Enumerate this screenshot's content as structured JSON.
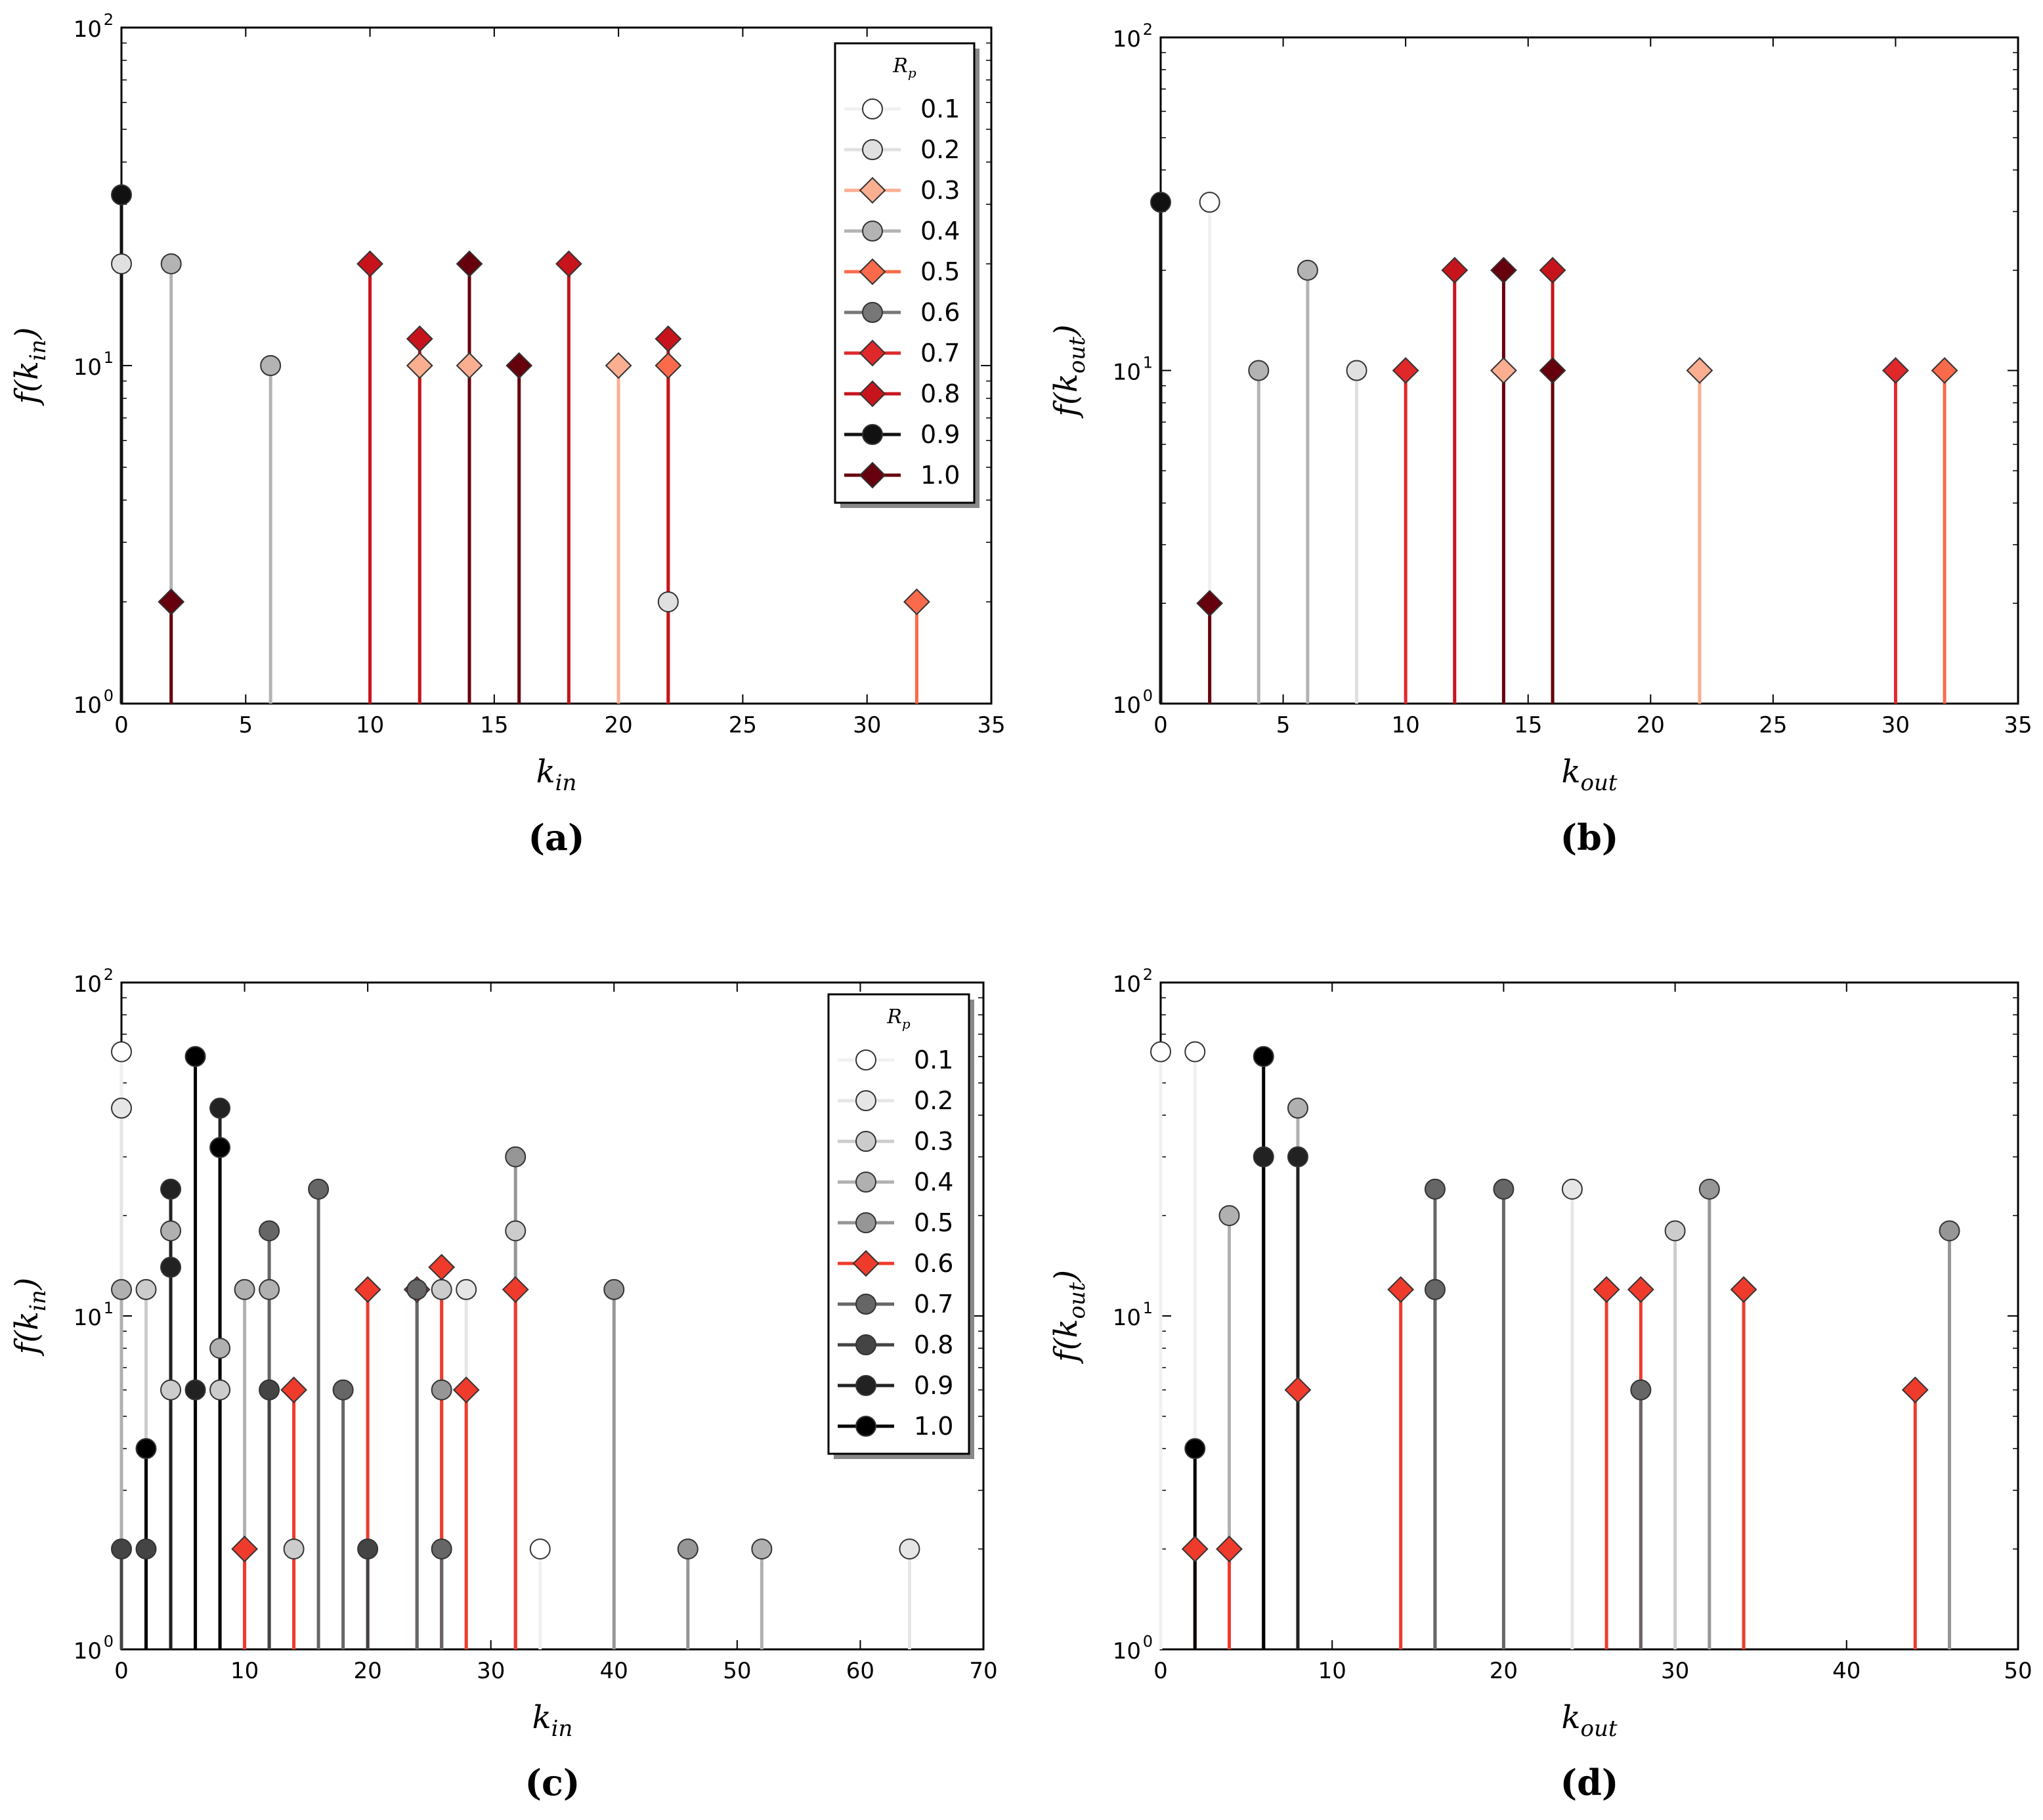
{
  "chart_data": [
    {
      "panel_label": "(a)",
      "type": "stem",
      "yscale": "log",
      "xlim": [
        0,
        35
      ],
      "ylim": [
        1,
        100
      ],
      "xticks": [
        "0",
        "5",
        "10",
        "15",
        "20",
        "25",
        "30",
        "35"
      ],
      "yticks": [
        "10",
        "10",
        "10"
      ],
      "ytick_exponents": [
        "0",
        "1",
        "2"
      ],
      "xlabel": "k",
      "xlabel_sub": "in",
      "ylabel": "f(k",
      "ylabel_sub": "in",
      "ylabel_close": ")",
      "legend": {
        "title": "R",
        "title_sub": "p",
        "placement": "upper-right"
      },
      "series": [
        {
          "name": "0.1",
          "marker": "circle",
          "color": "#ffffff",
          "line": "#f0f0f0",
          "points": []
        },
        {
          "name": "0.2",
          "marker": "circle",
          "color": "#e0e0e0",
          "line": "#e0e0e0",
          "points": [
            [
              0,
              20
            ],
            [
              22,
              2
            ]
          ]
        },
        {
          "name": "0.3",
          "marker": "diamond",
          "color": "#fcae91",
          "line": "#fcae91",
          "points": [
            [
              12,
              10
            ],
            [
              14,
              10
            ],
            [
              20,
              10
            ]
          ]
        },
        {
          "name": "0.4",
          "marker": "circle",
          "color": "#b3b3b3",
          "line": "#b3b3b3",
          "points": [
            [
              2,
              20
            ],
            [
              6,
              10
            ]
          ]
        },
        {
          "name": "0.5",
          "marker": "diamond",
          "color": "#fb6a4a",
          "line": "#fb6a4a",
          "points": [
            [
              22,
              10
            ],
            [
              32,
              2
            ]
          ]
        },
        {
          "name": "0.6",
          "marker": "circle",
          "color": "#777777",
          "line": "#777777",
          "points": []
        },
        {
          "name": "0.7",
          "marker": "diamond",
          "color": "#e0282b",
          "line": "#e0282b",
          "points": []
        },
        {
          "name": "0.8",
          "marker": "diamond",
          "color": "#c7141c",
          "line": "#c7141c",
          "points": [
            [
              10,
              20
            ],
            [
              12,
              12
            ],
            [
              18,
              20
            ],
            [
              22,
              12
            ]
          ]
        },
        {
          "name": "0.9",
          "marker": "circle",
          "color": "#111111",
          "line": "#111111",
          "points": [
            [
              0,
              32
            ]
          ]
        },
        {
          "name": "1.0",
          "marker": "diamond",
          "color": "#67000d",
          "line": "#67000d",
          "points": [
            [
              2,
              2
            ],
            [
              14,
              20
            ],
            [
              16,
              10
            ]
          ]
        }
      ]
    },
    {
      "panel_label": "(b)",
      "type": "stem",
      "yscale": "log",
      "xlim": [
        0,
        35
      ],
      "ylim": [
        1,
        100
      ],
      "xticks": [
        "0",
        "5",
        "10",
        "15",
        "20",
        "25",
        "30",
        "35"
      ],
      "yticks": [
        "10",
        "10",
        "10"
      ],
      "ytick_exponents": [
        "0",
        "1",
        "2"
      ],
      "xlabel": "k",
      "xlabel_sub": "out",
      "ylabel": "f(k",
      "ylabel_sub": "out",
      "ylabel_close": ")",
      "series": [
        {
          "name": "0.1",
          "marker": "circle",
          "color": "#ffffff",
          "line": "#f0f0f0",
          "points": [
            [
              2,
              32
            ]
          ]
        },
        {
          "name": "0.2",
          "marker": "circle",
          "color": "#e0e0e0",
          "line": "#e0e0e0",
          "points": [
            [
              8,
              10
            ]
          ]
        },
        {
          "name": "0.3",
          "marker": "diamond",
          "color": "#fcae91",
          "line": "#fcae91",
          "points": [
            [
              14,
              10
            ],
            [
              22,
              10
            ]
          ]
        },
        {
          "name": "0.4",
          "marker": "circle",
          "color": "#b3b3b3",
          "line": "#b3b3b3",
          "points": [
            [
              4,
              10
            ],
            [
              6,
              20
            ]
          ]
        },
        {
          "name": "0.5",
          "marker": "diamond",
          "color": "#fb6a4a",
          "line": "#fb6a4a",
          "points": [
            [
              32,
              10
            ]
          ]
        },
        {
          "name": "0.7",
          "marker": "diamond",
          "color": "#e0282b",
          "line": "#e0282b",
          "points": [
            [
              10,
              10
            ],
            [
              30,
              10
            ]
          ]
        },
        {
          "name": "0.8",
          "marker": "diamond",
          "color": "#c7141c",
          "line": "#c7141c",
          "points": [
            [
              12,
              20
            ],
            [
              16,
              20
            ]
          ]
        },
        {
          "name": "0.9",
          "marker": "circle",
          "color": "#111111",
          "line": "#111111",
          "points": [
            [
              0,
              32
            ]
          ]
        },
        {
          "name": "1.0",
          "marker": "diamond",
          "color": "#67000d",
          "line": "#67000d",
          "points": [
            [
              2,
              2
            ],
            [
              14,
              20
            ],
            [
              16,
              10
            ]
          ]
        }
      ]
    },
    {
      "panel_label": "(c)",
      "type": "stem",
      "yscale": "log",
      "xlim": [
        0,
        70
      ],
      "ylim": [
        1,
        100
      ],
      "xticks": [
        "0",
        "10",
        "20",
        "30",
        "40",
        "50",
        "60",
        "70"
      ],
      "yticks": [
        "10",
        "10",
        "10"
      ],
      "ytick_exponents": [
        "0",
        "1",
        "2"
      ],
      "xlabel": "k",
      "xlabel_sub": "in",
      "ylabel": "f(k",
      "ylabel_sub": "in",
      "ylabel_close": ")",
      "legend": {
        "title": "R",
        "title_sub": "p",
        "placement": "upper-right"
      },
      "series": [
        {
          "name": "0.1",
          "marker": "circle",
          "color": "#ffffff",
          "line": "#f0f0f0",
          "points": [
            [
              0,
              62
            ],
            [
              34,
              2
            ]
          ]
        },
        {
          "name": "0.2",
          "marker": "circle",
          "color": "#e6e6e6",
          "line": "#e6e6e6",
          "points": [
            [
              0,
              42
            ],
            [
              28,
              12
            ],
            [
              64,
              2
            ]
          ]
        },
        {
          "name": "0.3",
          "marker": "circle",
          "color": "#cccccc",
          "line": "#cccccc",
          "points": [
            [
              2,
              12
            ],
            [
              4,
              6
            ],
            [
              8,
              6
            ],
            [
              14,
              2
            ],
            [
              26,
              12
            ],
            [
              32,
              18
            ]
          ]
        },
        {
          "name": "0.4",
          "marker": "circle",
          "color": "#b0b0b0",
          "line": "#b0b0b0",
          "points": [
            [
              0,
              12
            ],
            [
              4,
              18
            ],
            [
              10,
              12
            ],
            [
              12,
              12
            ],
            [
              8,
              8
            ],
            [
              52,
              2
            ]
          ]
        },
        {
          "name": "0.5",
          "marker": "circle",
          "color": "#969696",
          "line": "#969696",
          "points": [
            [
              32,
              30
            ],
            [
              40,
              12
            ],
            [
              26,
              6
            ],
            [
              46,
              2
            ]
          ]
        },
        {
          "name": "0.6",
          "marker": "diamond",
          "color": "#ef3b2c",
          "line": "#ef3b2c",
          "points": [
            [
              10,
              2
            ],
            [
              14,
              6
            ],
            [
              20,
              12
            ],
            [
              24,
              12
            ],
            [
              26,
              14
            ],
            [
              28,
              6
            ],
            [
              32,
              12
            ]
          ]
        },
        {
          "name": "0.7",
          "marker": "circle",
          "color": "#666666",
          "line": "#666666",
          "points": [
            [
              12,
              18
            ],
            [
              16,
              24
            ],
            [
              18,
              6
            ],
            [
              24,
              12
            ],
            [
              26,
              2
            ]
          ]
        },
        {
          "name": "0.8",
          "marker": "circle",
          "color": "#444444",
          "line": "#444444",
          "points": [
            [
              12,
              6
            ],
            [
              20,
              2
            ],
            [
              0,
              2
            ],
            [
              2,
              2
            ]
          ]
        },
        {
          "name": "0.9",
          "marker": "circle",
          "color": "#222222",
          "line": "#222222",
          "points": [
            [
              4,
              24
            ],
            [
              8,
              42
            ],
            [
              6,
              6
            ],
            [
              4,
              14
            ]
          ]
        },
        {
          "name": "1.0",
          "marker": "circle",
          "color": "#000000",
          "line": "#000000",
          "points": [
            [
              6,
              60
            ],
            [
              8,
              32
            ],
            [
              2,
              4
            ]
          ]
        }
      ]
    },
    {
      "panel_label": "(d)",
      "type": "stem",
      "yscale": "log",
      "xlim": [
        0,
        50
      ],
      "ylim": [
        1,
        100
      ],
      "xticks": [
        "0",
        "10",
        "20",
        "30",
        "40",
        "50"
      ],
      "yticks": [
        "10",
        "10",
        "10"
      ],
      "ytick_exponents": [
        "0",
        "1",
        "2"
      ],
      "xlabel": "k",
      "xlabel_sub": "out",
      "ylabel": "f(k",
      "ylabel_sub": "out",
      "ylabel_close": ")",
      "series": [
        {
          "name": "0.1",
          "marker": "circle",
          "color": "#ffffff",
          "line": "#f0f0f0",
          "points": [
            [
              0,
              62
            ],
            [
              2,
              62
            ]
          ]
        },
        {
          "name": "0.2",
          "marker": "circle",
          "color": "#e6e6e6",
          "line": "#e6e6e6",
          "points": [
            [
              24,
              24
            ]
          ]
        },
        {
          "name": "0.3",
          "marker": "circle",
          "color": "#cccccc",
          "line": "#cccccc",
          "points": [
            [
              30,
              18
            ]
          ]
        },
        {
          "name": "0.4",
          "marker": "circle",
          "color": "#b0b0b0",
          "line": "#b0b0b0",
          "points": [
            [
              4,
              20
            ],
            [
              8,
              42
            ]
          ]
        },
        {
          "name": "0.5",
          "marker": "circle",
          "color": "#969696",
          "line": "#969696",
          "points": [
            [
              32,
              24
            ],
            [
              46,
              18
            ]
          ]
        },
        {
          "name": "0.6",
          "marker": "diamond",
          "color": "#ef3b2c",
          "line": "#ef3b2c",
          "points": [
            [
              2,
              2
            ],
            [
              4,
              2
            ],
            [
              8,
              6
            ],
            [
              14,
              12
            ],
            [
              26,
              12
            ],
            [
              28,
              12
            ],
            [
              34,
              12
            ],
            [
              44,
              6
            ]
          ]
        },
        {
          "name": "0.7",
          "marker": "circle",
          "color": "#666666",
          "line": "#666666",
          "points": [
            [
              16,
              24
            ],
            [
              16,
              12
            ],
            [
              20,
              24
            ],
            [
              28,
              6
            ]
          ]
        },
        {
          "name": "0.9",
          "marker": "circle",
          "color": "#222222",
          "line": "#222222",
          "points": [
            [
              6,
              30
            ],
            [
              8,
              30
            ]
          ]
        },
        {
          "name": "1.0",
          "marker": "circle",
          "color": "#000000",
          "line": "#000000",
          "points": [
            [
              2,
              4
            ],
            [
              6,
              60
            ]
          ]
        }
      ]
    }
  ]
}
